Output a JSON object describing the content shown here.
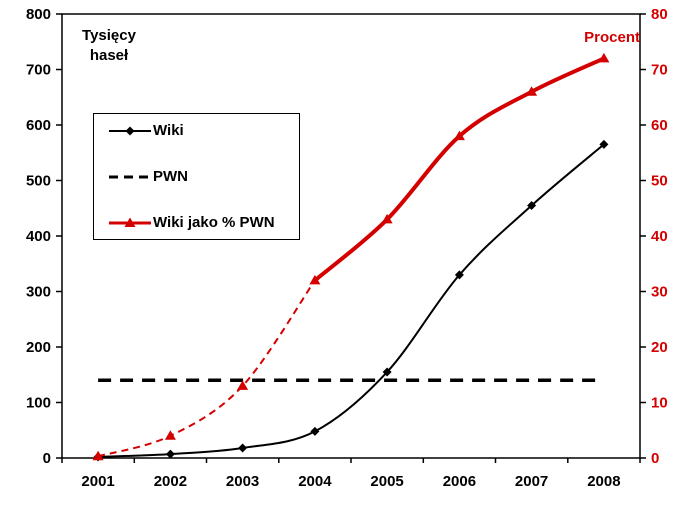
{
  "chart_data": {
    "type": "line",
    "title": "",
    "x_categories": [
      "2001",
      "2002",
      "2003",
      "2004",
      "2005",
      "2006",
      "2007",
      "2008"
    ],
    "left_axis": {
      "label": "Tysięcy haseł",
      "min": 0,
      "max": 800,
      "step": 100,
      "ticks": [
        "0",
        "100",
        "200",
        "300",
        "400",
        "500",
        "600",
        "700",
        "800"
      ],
      "color": "#000000"
    },
    "right_axis": {
      "label": "Procent",
      "min": 0,
      "max": 80,
      "step": 10,
      "ticks": [
        "0",
        "10",
        "20",
        "30",
        "40",
        "50",
        "60",
        "70",
        "80"
      ],
      "color": "#d40000"
    },
    "series": [
      {
        "name": "Wiki",
        "axis": "left",
        "color": "#000000",
        "line_style": "solid",
        "line_width": 2,
        "marker": "diamond",
        "values": [
          2,
          7,
          18,
          48,
          155,
          330,
          455,
          565
        ]
      },
      {
        "name": "PWN",
        "axis": "left",
        "color": "#000000",
        "line_style": "dashed",
        "line_width": 3.5,
        "marker": "none",
        "values": [
          140,
          140,
          140,
          140,
          140,
          140,
          140,
          140
        ]
      },
      {
        "name": "Wiki jako % PWN",
        "axis": "right",
        "color": "#d40000",
        "line_style": "dashed_then_solid",
        "solid_from_index": 3,
        "line_width": 4,
        "marker": "triangle",
        "values": [
          0.3,
          4,
          13,
          32,
          43,
          58,
          66,
          72
        ]
      }
    ],
    "legend": {
      "position": "inside-top-left"
    },
    "grid": false,
    "background": "#ffffff"
  }
}
